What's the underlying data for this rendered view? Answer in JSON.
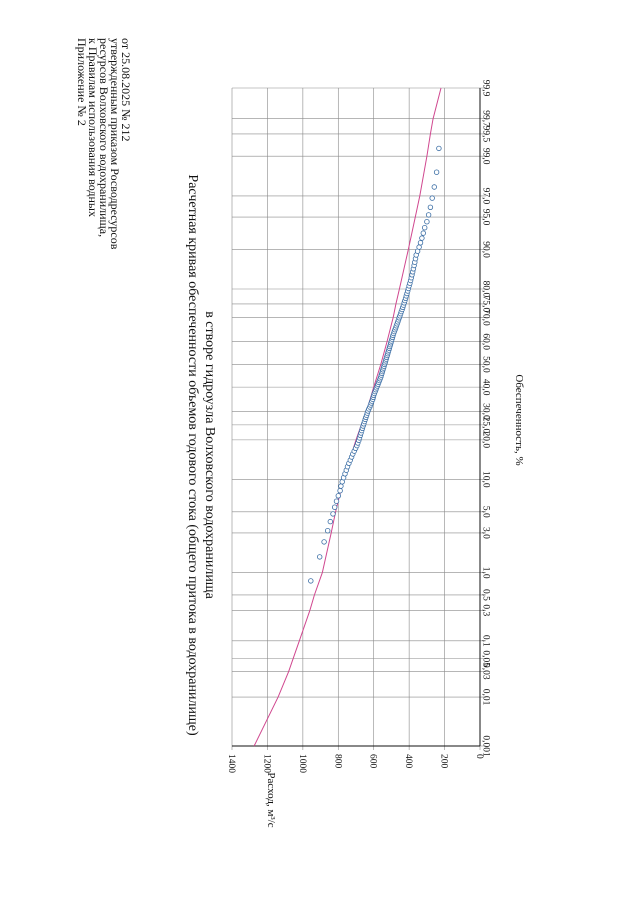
{
  "appendix": {
    "line1": "Приложение № 2",
    "line2": "к Правилам использования водных",
    "line3": "ресурсов Волховского водохранилища,",
    "line4": "утвержденным приказом Росводресурсов",
    "line5": "от 25.08.2025 № 212"
  },
  "chart_data": {
    "type": "scatter",
    "title": "Расчетная кривая обеспеченности объемов годового стока (общего притока в водохранилище)",
    "subtitle": "в створе гидроузла Волховского водохранилища",
    "xlabel": "Обеспеченность, %",
    "ylabel": "Расход, м³/с",
    "x_scale": "probability",
    "xlim": [
      0.001,
      99.9
    ],
    "ylim": [
      0,
      1400
    ],
    "grid": true,
    "x_ticks": [
      "0,001",
      "0,01",
      "0,03",
      "0,05",
      "0,1",
      "0,3",
      "0,5",
      "1,0",
      "3,0",
      "5,0",
      "10,0",
      "20,0",
      "25,0",
      "30,0",
      "40,0",
      "50,0",
      "60,0",
      "70,0",
      "75,0",
      "80,0",
      "90,0",
      "95,0",
      "97,0",
      "99,0",
      "99,5",
      "99,7",
      "99,9"
    ],
    "x_tick_values": [
      0.001,
      0.01,
      0.03,
      0.05,
      0.1,
      0.3,
      0.5,
      1,
      3,
      5,
      10,
      20,
      25,
      30,
      40,
      50,
      60,
      70,
      75,
      80,
      90,
      95,
      97,
      99,
      99.5,
      99.7,
      99.9
    ],
    "y_ticks": [
      "0",
      "200",
      "400",
      "600",
      "800",
      "1000",
      "1200",
      "1400"
    ],
    "y_tick_values": [
      0,
      200,
      400,
      600,
      800,
      1000,
      1200,
      1400
    ],
    "line_color": "#d0478f",
    "point_color": "#3b6ea5",
    "series": [
      {
        "type": "line",
        "x": [
          0.001,
          0.01,
          0.03,
          0.05,
          0.1,
          0.3,
          0.5,
          1,
          3,
          5,
          10,
          20,
          25,
          30,
          40,
          50,
          60,
          70,
          75,
          80,
          90,
          95,
          97,
          99,
          99.5,
          99.7,
          99.9
        ],
        "y": [
          1275,
          1140,
          1080,
          1055,
          1020,
          960,
          935,
          890,
          840,
          815,
          770,
          700,
          670,
          640,
          600,
          560,
          525,
          490,
          475,
          455,
          405,
          365,
          340,
          300,
          280,
          265,
          220
        ]
      },
      {
        "type": "scatter",
        "x": [
          0.78,
          1.58,
          2.38,
          3.17,
          3.97,
          4.76,
          5.56,
          6.35,
          7.14,
          7.94,
          8.73,
          9.52,
          10.32,
          11.11,
          11.9,
          12.7,
          13.49,
          14.29,
          15.08,
          15.87,
          16.67,
          17.46,
          18.25,
          19.05,
          19.84,
          20.63,
          21.43,
          22.22,
          23.02,
          23.81,
          24.6,
          25.4,
          26.19,
          26.98,
          27.78,
          28.57,
          29.37,
          30.16,
          30.95,
          31.75,
          32.54,
          33.33,
          34.13,
          34.92,
          35.71,
          36.51,
          37.3,
          38.1,
          38.89,
          39.68,
          40.48,
          41.27,
          42.06,
          42.86,
          43.65,
          44.44,
          45.24,
          46.03,
          46.83,
          47.62,
          48.41,
          49.21,
          50.0,
          50.79,
          51.59,
          52.38,
          53.17,
          53.97,
          54.76,
          55.56,
          56.35,
          57.14,
          57.94,
          58.73,
          59.52,
          60.32,
          61.11,
          61.9,
          62.7,
          63.49,
          64.29,
          65.08,
          65.87,
          66.67,
          67.46,
          68.25,
          69.05,
          69.84,
          70.63,
          71.43,
          72.22,
          73.02,
          73.81,
          74.6,
          75.4,
          76.19,
          76.98,
          77.78,
          78.57,
          79.37,
          80.16,
          80.95,
          81.75,
          82.54,
          83.33,
          84.13,
          84.92,
          85.71,
          86.51,
          87.3,
          88.1,
          88.89,
          89.68,
          90.48,
          91.27,
          92.06,
          92.86,
          93.65,
          94.44,
          95.24,
          96.03,
          96.83,
          97.62,
          98.41,
          99.21
        ],
        "y": [
          955,
          905,
          880,
          860,
          845,
          830,
          820,
          810,
          800,
          790,
          785,
          778,
          770,
          762,
          755,
          748,
          740,
          732,
          725,
          718,
          710,
          702,
          695,
          690,
          684,
          680,
          676,
          672,
          668,
          664,
          660,
          656,
          652,
          648,
          644,
          640,
          636,
          632,
          628,
          622,
          618,
          614,
          610,
          606,
          603,
          600,
          596,
          592,
          588,
          584,
          580,
          576,
          572,
          568,
          564,
          560,
          557,
          554,
          551,
          548,
          545,
          542,
          539,
          536,
          533,
          530,
          527,
          524,
          521,
          518,
          515,
          512,
          509,
          506,
          503,
          500,
          497,
          494,
          491,
          488,
          484,
          480,
          476,
          472,
          468,
          464,
          460,
          456,
          452,
          448,
          444,
          440,
          436,
          432,
          428,
          424,
          420,
          416,
          412,
          408,
          404,
          400,
          396,
          392,
          388,
          384,
          380,
          376,
          372,
          368,
          364,
          360,
          352,
          344,
          336,
          328,
          320,
          312,
          300,
          290,
          280,
          270,
          258,
          245,
          232
        ]
      }
    ]
  }
}
